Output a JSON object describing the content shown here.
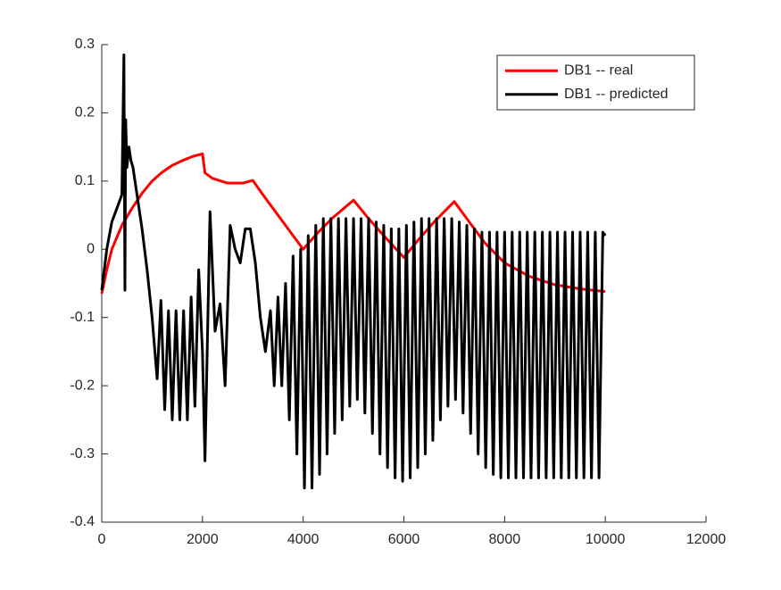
{
  "chart_data": {
    "type": "line",
    "xlim": [
      0,
      12000
    ],
    "xticks": [
      0,
      2000,
      4000,
      6000,
      8000,
      10000,
      12000
    ],
    "ylim": [
      -0.4,
      0.3
    ],
    "yticks": [
      -0.4,
      -0.3,
      -0.2,
      -0.1,
      0,
      0.1,
      0.2,
      0.3
    ],
    "grid": false,
    "legend": "northeast",
    "series": [
      {
        "name": "DB1 -- real",
        "color": "#ff0000",
        "x": [
          0,
          100,
          200,
          400,
          600,
          800,
          1000,
          1200,
          1400,
          1600,
          1800,
          2000,
          2050,
          2200,
          2500,
          2800,
          3000,
          3200,
          3500,
          3800,
          4000,
          4300,
          4600,
          5000,
          5300,
          5600,
          6000,
          6300,
          6600,
          7000,
          7300,
          7600,
          8000,
          8500,
          9000,
          9500,
          10000
        ],
        "values": [
          -0.065,
          -0.03,
          0,
          0.035,
          0.06,
          0.082,
          0.1,
          0.113,
          0.123,
          0.13,
          0.136,
          0.14,
          0.112,
          0.104,
          0.097,
          0.097,
          0.101,
          0.08,
          0.05,
          0.02,
          0,
          0.025,
          0.047,
          0.072,
          0.045,
          0.02,
          -0.012,
          0.015,
          0.04,
          0.07,
          0.04,
          0.01,
          -0.02,
          -0.04,
          -0.052,
          -0.058,
          -0.062
        ]
      },
      {
        "name": "DB1 -- predicted",
        "color": "#000000",
        "x": [
          0,
          100,
          200,
          300,
          400,
          440,
          460,
          475,
          500,
          540,
          580,
          620,
          700,
          800,
          900,
          1000,
          1100,
          1175,
          1250,
          1325,
          1400,
          1475,
          1550,
          1625,
          1700,
          1775,
          1850,
          1925,
          2000,
          2050,
          2150,
          2250,
          2350,
          2450,
          2550,
          2650,
          2750,
          2850,
          2950,
          3050,
          3150,
          3250,
          3350,
          3425,
          3500,
          3575,
          3650,
          3725,
          3800,
          3875,
          3950,
          4025,
          4100,
          4175,
          4250,
          4325,
          4400,
          4475,
          4550,
          4625,
          4700,
          4775,
          4850,
          4925,
          5000,
          5075,
          5150,
          5225,
          5300,
          5375,
          5450,
          5525,
          5600,
          5675,
          5750,
          5825,
          5900,
          5975,
          6050,
          6125,
          6200,
          6275,
          6350,
          6425,
          6500,
          6575,
          6650,
          6725,
          6800,
          6875,
          6950,
          7025,
          7100,
          7175,
          7250,
          7325,
          7400,
          7475,
          7550,
          7625,
          7700,
          7775,
          7850,
          7925,
          8000,
          8075,
          8150,
          8225,
          8300,
          8375,
          8450,
          8525,
          8600,
          8675,
          8750,
          8825,
          8900,
          8975,
          9050,
          9125,
          9200,
          9275,
          9350,
          9425,
          9500,
          9575,
          9650,
          9725,
          9800,
          9875,
          9950,
          10000
        ],
        "values": [
          -0.06,
          0,
          0.04,
          0.06,
          0.08,
          0.285,
          -0.06,
          0.19,
          0.12,
          0.15,
          0.13,
          0.12,
          0.08,
          0.03,
          -0.03,
          -0.1,
          -0.19,
          -0.075,
          -0.235,
          -0.09,
          -0.25,
          -0.09,
          -0.25,
          -0.09,
          -0.25,
          -0.07,
          -0.23,
          -0.03,
          -0.15,
          -0.31,
          0.055,
          -0.12,
          -0.08,
          -0.2,
          0.035,
          0,
          -0.02,
          0.03,
          0.03,
          -0.02,
          -0.1,
          -0.15,
          -0.09,
          -0.2,
          -0.07,
          -0.2,
          -0.05,
          -0.25,
          -0.01,
          -0.3,
          0,
          -0.35,
          0.02,
          -0.35,
          0.035,
          -0.33,
          0.045,
          -0.3,
          0.045,
          -0.27,
          0.045,
          -0.25,
          0.045,
          -0.23,
          0.045,
          -0.22,
          0.045,
          -0.24,
          0.045,
          -0.27,
          0.04,
          -0.3,
          0.035,
          -0.32,
          0.03,
          -0.335,
          0.03,
          -0.34,
          0.035,
          -0.335,
          0.04,
          -0.32,
          0.045,
          -0.3,
          0.045,
          -0.28,
          0.045,
          -0.25,
          0.045,
          -0.23,
          0.045,
          -0.22,
          0.04,
          -0.24,
          0.035,
          -0.27,
          0.03,
          -0.3,
          0.025,
          -0.32,
          0.025,
          -0.33,
          0.025,
          -0.335,
          0.025,
          -0.335,
          0.025,
          -0.335,
          0.025,
          -0.335,
          0.025,
          -0.335,
          0.025,
          -0.335,
          0.025,
          -0.335,
          0.025,
          -0.335,
          0.025,
          -0.335,
          0.025,
          -0.335,
          0.025,
          -0.335,
          0.025,
          -0.335,
          0.025,
          -0.335,
          0.025,
          -0.335,
          0.025,
          0.02
        ]
      }
    ]
  }
}
